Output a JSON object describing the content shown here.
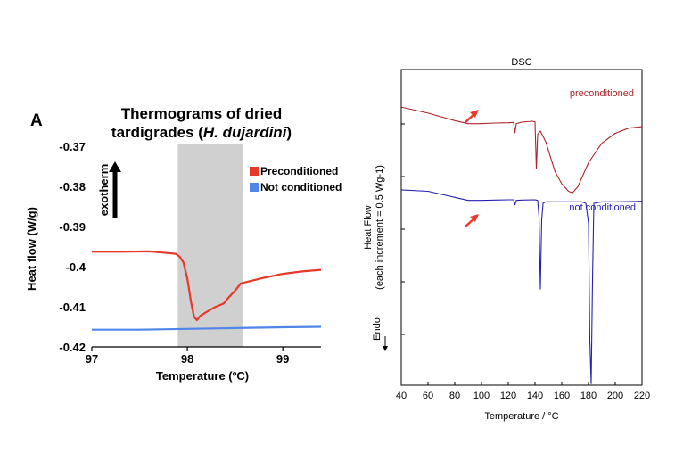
{
  "chart_data": [
    {
      "type": "line",
      "panel_label": "A",
      "title": "Thermograms of dried",
      "title_line2_prefix": "tardigrades (",
      "title_line2_italic": "H. dujardini",
      "title_line2_suffix": ")",
      "xlabel": "Temperature (ºC)",
      "ylabel": "Heat flow (W/g)",
      "annotation": "exotherm",
      "xlim": [
        97,
        99.4
      ],
      "ylim": [
        -0.42,
        -0.37
      ],
      "xticks": [
        97,
        98,
        99
      ],
      "xtick_labels": [
        "97",
        "98",
        "99"
      ],
      "yticks": [
        -0.37,
        -0.38,
        -0.39,
        -0.4,
        -0.41,
        -0.42
      ],
      "ytick_labels": [
        "-0.37",
        "-0.38",
        "-0.39",
        "-0.4",
        "-0.41",
        "-0.42"
      ],
      "shaded_region": [
        97.9,
        98.58
      ],
      "grid": false,
      "legend_position": "top-right",
      "series": [
        {
          "name": "Preconditioned",
          "color": "#e8382a",
          "x": [
            97.0,
            97.3,
            97.6,
            97.75,
            97.88,
            97.92,
            97.96,
            98.0,
            98.04,
            98.07,
            98.1,
            98.14,
            98.2,
            98.28,
            98.38,
            98.44,
            98.5,
            98.56,
            98.64,
            98.8,
            99.0,
            99.2,
            99.4
          ],
          "y": [
            -0.3963,
            -0.3963,
            -0.3962,
            -0.3965,
            -0.3968,
            -0.3975,
            -0.399,
            -0.403,
            -0.409,
            -0.4125,
            -0.4133,
            -0.4122,
            -0.4113,
            -0.4102,
            -0.4092,
            -0.4075,
            -0.406,
            -0.4042,
            -0.4037,
            -0.4028,
            -0.4018,
            -0.4012,
            -0.4008
          ]
        },
        {
          "name": "Not conditioned",
          "color": "#4f86e8",
          "x": [
            97.0,
            97.5,
            98.0,
            98.5,
            99.0,
            99.4
          ],
          "y": [
            -0.4157,
            -0.4157,
            -0.4155,
            -0.4153,
            -0.4151,
            -0.415
          ]
        }
      ]
    },
    {
      "type": "line",
      "title": "DSC",
      "xlabel": "Temperature / °C",
      "ylabel": "Heat Flow",
      "ylabel_line2": "(each increment = 0.5 Wg-1)",
      "endo_label": "Endo",
      "xlim": [
        40,
        220
      ],
      "ylim": [
        -10,
        0.5
      ],
      "xticks": [
        40,
        60,
        80,
        100,
        120,
        140,
        160,
        180,
        200,
        220
      ],
      "xtick_labels": [
        "40",
        "60",
        "80",
        "100",
        "120",
        "140",
        "160",
        "180",
        "200",
        "220"
      ],
      "grid": false,
      "series": [
        {
          "name": "preconditioned",
          "color": "#b0232a",
          "x": [
            40,
            60,
            80,
            90,
            100,
            110,
            120,
            124,
            125,
            126,
            130,
            138,
            140,
            141,
            142,
            144,
            148,
            155,
            160,
            165,
            168,
            172,
            180,
            190,
            200,
            210,
            220
          ],
          "y": [
            -0.75,
            -0.95,
            -1.2,
            -1.3,
            -1.3,
            -1.28,
            -1.27,
            -1.26,
            -1.6,
            -1.3,
            -1.25,
            -1.22,
            -1.24,
            -2.8,
            -1.65,
            -1.55,
            -1.9,
            -2.9,
            -3.3,
            -3.55,
            -3.6,
            -3.4,
            -2.6,
            -1.95,
            -1.62,
            -1.45,
            -1.4
          ]
        },
        {
          "name": "not conditioned",
          "color": "#2620b0",
          "x": [
            40,
            60,
            80,
            90,
            100,
            110,
            120,
            124,
            125,
            126,
            130,
            140,
            142,
            143,
            144,
            145,
            146,
            148,
            160,
            170,
            175,
            178,
            180,
            181,
            182,
            183,
            184,
            190,
            200,
            210,
            220
          ],
          "y": [
            -3.5,
            -3.55,
            -3.75,
            -3.85,
            -3.85,
            -3.84,
            -3.83,
            -3.83,
            -4.0,
            -3.85,
            -3.84,
            -3.83,
            -3.85,
            -4.4,
            -6.8,
            -4.5,
            -3.95,
            -3.9,
            -3.9,
            -3.9,
            -3.9,
            -3.95,
            -4.6,
            -8.5,
            -9.95,
            -6.5,
            -3.95,
            -3.9,
            -3.9,
            -3.89,
            -3.88
          ]
        }
      ]
    }
  ]
}
